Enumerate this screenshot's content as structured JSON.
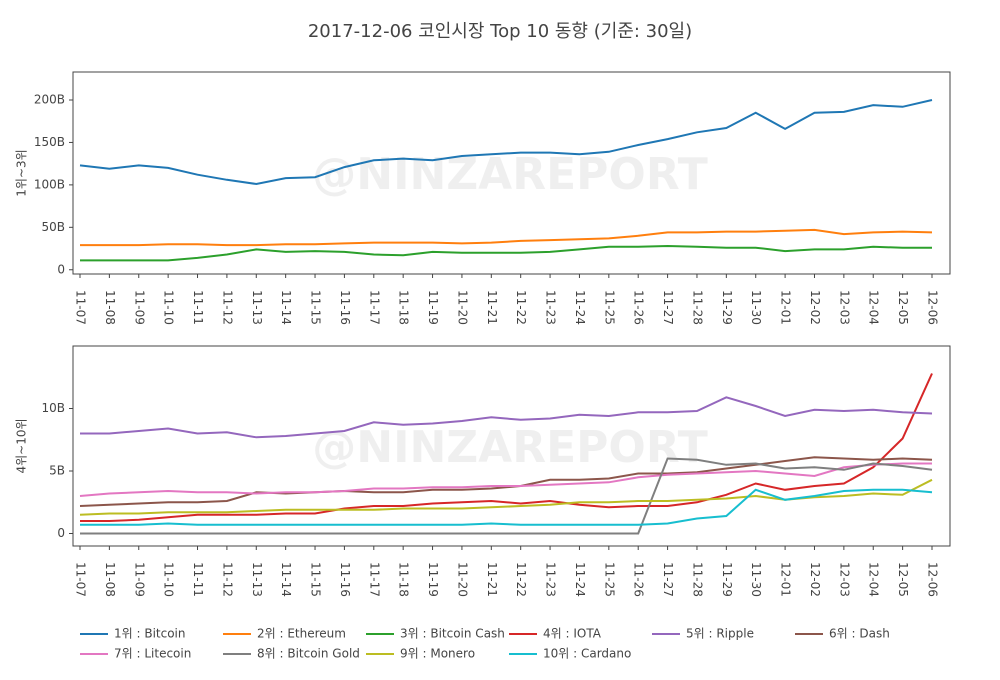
{
  "chart_data": [
    {
      "type": "line",
      "title": "2017-12-06 코인시장 Top 10 동향 (기준: 30일)",
      "watermark": "@NINZAREPORT",
      "y_label": "1위~3위",
      "categories": [
        "11-07",
        "11-08",
        "11-09",
        "11-10",
        "11-11",
        "11-12",
        "11-13",
        "11-14",
        "11-15",
        "11-16",
        "11-17",
        "11-18",
        "11-19",
        "11-20",
        "11-21",
        "11-22",
        "11-23",
        "11-24",
        "11-25",
        "11-26",
        "11-27",
        "11-28",
        "11-29",
        "11-30",
        "12-01",
        "12-02",
        "12-03",
        "12-04",
        "12-05",
        "12-06"
      ],
      "ylim": [
        -5,
        233
      ],
      "yticks": [
        0,
        {
          "value": 50,
          "label": "50B"
        },
        {
          "value": 100,
          "label": "100B"
        },
        {
          "value": 150,
          "label": "150B"
        },
        {
          "value": 200,
          "label": "200B"
        }
      ],
      "series": [
        {
          "name": "1위 : Bitcoin",
          "color": "#1f77b4",
          "values": [
            123,
            119,
            123,
            120,
            112,
            106,
            101,
            108,
            109,
            121,
            129,
            131,
            129,
            134,
            136,
            138,
            138,
            136,
            139,
            147,
            154,
            162,
            167,
            185,
            166,
            185,
            186,
            194,
            192,
            200
          ]
        },
        {
          "name": "2위 : Ethereum",
          "color": "#ff7f0e",
          "values": [
            29,
            29,
            29,
            30,
            30,
            29,
            29,
            30,
            30,
            31,
            32,
            32,
            32,
            31,
            32,
            34,
            35,
            36,
            37,
            40,
            44,
            44,
            45,
            45,
            46,
            47,
            42,
            44,
            45,
            44
          ]
        },
        {
          "name": "3위 : Bitcoin Cash",
          "color": "#2ca02c",
          "values": [
            11,
            11,
            11,
            11,
            14,
            18,
            24,
            21,
            22,
            21,
            18,
            17,
            21,
            20,
            20,
            20,
            21,
            24,
            27,
            27,
            28,
            27,
            26,
            26,
            22,
            24,
            24,
            27,
            26,
            26
          ]
        }
      ]
    },
    {
      "type": "line",
      "watermark": "@NINZAREPORT",
      "y_label": "4위~10위",
      "categories": [
        "11-07",
        "11-08",
        "11-09",
        "11-10",
        "11-11",
        "11-12",
        "11-13",
        "11-14",
        "11-15",
        "11-16",
        "11-17",
        "11-18",
        "11-19",
        "11-20",
        "11-21",
        "11-22",
        "11-23",
        "11-24",
        "11-25",
        "11-26",
        "11-27",
        "11-28",
        "11-29",
        "11-30",
        "12-01",
        "12-02",
        "12-03",
        "12-04",
        "12-05",
        "12-06"
      ],
      "ylim": [
        -1,
        15
      ],
      "yticks": [
        0,
        {
          "value": 5,
          "label": "5B"
        },
        {
          "value": 10,
          "label": "10B"
        }
      ],
      "series": [
        {
          "name": "4위 : IOTA",
          "color": "#d62728",
          "values": [
            1.0,
            1.0,
            1.1,
            1.3,
            1.5,
            1.5,
            1.5,
            1.6,
            1.6,
            2.0,
            2.2,
            2.2,
            2.4,
            2.5,
            2.6,
            2.4,
            2.6,
            2.3,
            2.1,
            2.2,
            2.2,
            2.5,
            3.1,
            4.0,
            3.5,
            3.8,
            4.0,
            5.3,
            7.6,
            12.8
          ]
        },
        {
          "name": "5위 : Ripple",
          "color": "#9467bd",
          "values": [
            8.0,
            8.0,
            8.2,
            8.4,
            8.0,
            8.1,
            7.7,
            7.8,
            8.0,
            8.2,
            8.9,
            8.7,
            8.8,
            9.0,
            9.3,
            9.1,
            9.2,
            9.5,
            9.4,
            9.7,
            9.7,
            9.8,
            10.9,
            10.2,
            9.4,
            9.9,
            9.8,
            9.9,
            9.7,
            9.6
          ]
        },
        {
          "name": "6위 : Dash",
          "color": "#8c564b",
          "values": [
            2.2,
            2.3,
            2.4,
            2.5,
            2.5,
            2.6,
            3.3,
            3.2,
            3.3,
            3.4,
            3.3,
            3.3,
            3.5,
            3.5,
            3.6,
            3.8,
            4.3,
            4.3,
            4.4,
            4.8,
            4.8,
            4.9,
            5.2,
            5.5,
            5.8,
            6.1,
            6.0,
            5.9,
            6.0,
            5.9
          ]
        },
        {
          "name": "7위 : Litecoin",
          "color": "#e377c2",
          "values": [
            3.0,
            3.2,
            3.3,
            3.4,
            3.3,
            3.3,
            3.2,
            3.3,
            3.3,
            3.4,
            3.6,
            3.6,
            3.7,
            3.7,
            3.8,
            3.8,
            3.9,
            4.0,
            4.1,
            4.5,
            4.7,
            4.8,
            4.9,
            5.0,
            4.8,
            4.6,
            5.3,
            5.5,
            5.6,
            5.6
          ]
        },
        {
          "name": "8위 : Bitcoin Gold",
          "color": "#7f7f7f",
          "values": [
            0,
            0,
            0,
            0,
            0,
            0,
            0,
            0,
            0,
            0,
            0,
            0,
            0,
            0,
            0,
            0,
            0,
            0,
            0,
            0,
            6.0,
            5.9,
            5.5,
            5.6,
            5.2,
            5.3,
            5.1,
            5.6,
            5.4,
            5.1
          ]
        },
        {
          "name": "9위 : Monero",
          "color": "#bcbd22",
          "values": [
            1.5,
            1.6,
            1.6,
            1.7,
            1.7,
            1.7,
            1.8,
            1.9,
            1.9,
            1.9,
            1.9,
            2.0,
            2.0,
            2.0,
            2.1,
            2.2,
            2.3,
            2.5,
            2.5,
            2.6,
            2.6,
            2.7,
            2.8,
            3.0,
            2.7,
            2.9,
            3.0,
            3.2,
            3.1,
            4.3
          ]
        },
        {
          "name": "10위 : Cardano",
          "color": "#17becf",
          "values": [
            0.7,
            0.7,
            0.7,
            0.8,
            0.7,
            0.7,
            0.7,
            0.7,
            0.7,
            0.7,
            0.7,
            0.7,
            0.7,
            0.7,
            0.8,
            0.7,
            0.7,
            0.7,
            0.7,
            0.7,
            0.8,
            1.2,
            1.4,
            3.5,
            2.7,
            3.0,
            3.4,
            3.5,
            3.5,
            3.3
          ]
        }
      ]
    }
  ]
}
